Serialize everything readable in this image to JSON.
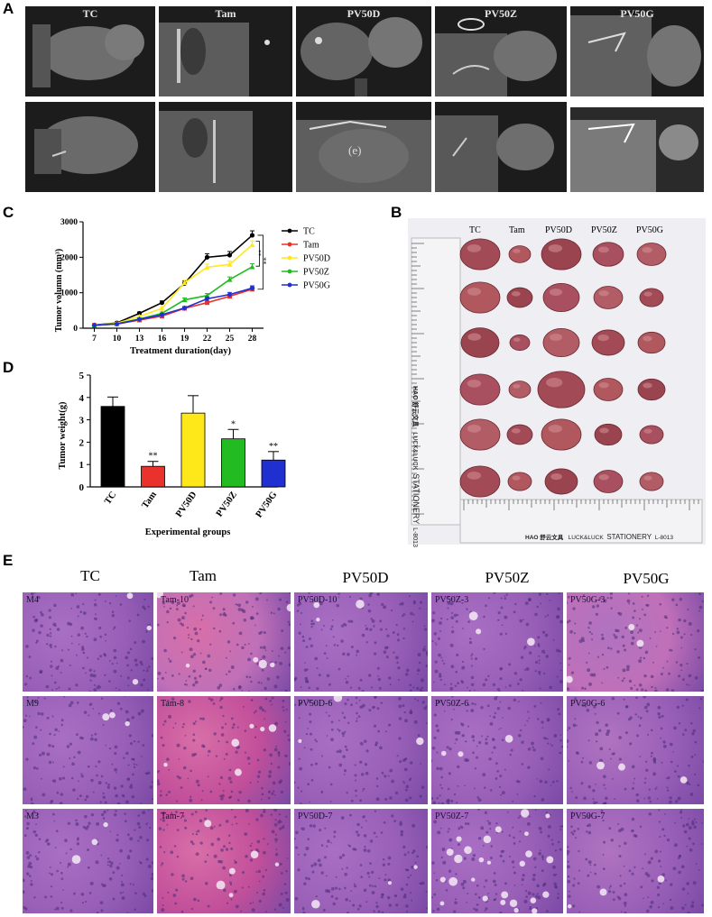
{
  "panels": {
    "A": "A",
    "B": "B",
    "C": "C",
    "D": "D",
    "E": "E"
  },
  "groups": [
    "TC",
    "Tam",
    "PV50D",
    "PV50Z",
    "PV50G"
  ],
  "panelA": {
    "titles": [
      "TC",
      "Tam",
      "PV50D",
      "PV50Z",
      "PV50G"
    ],
    "annotation": "(e)"
  },
  "panelB": {
    "col_labels": [
      "TC",
      "Tam",
      "PV50D",
      "PV50Z",
      "PV50G"
    ],
    "ruler_brand": "HAO 舒云文具",
    "ruler_text": "LUCK&LUCK",
    "ruler_stationery": "STATIONERY",
    "ruler_model": "L-8013"
  },
  "colors": {
    "TC": "#000000",
    "Tam": "#e8322b",
    "PV50D": "#ffe81a",
    "PV50Z": "#22bb22",
    "PV50G": "#1f2fd0"
  },
  "chart_data": [
    {
      "type": "line",
      "panel": "C",
      "xlabel": "Treatment duration(day)",
      "ylabel": "Tumor volumn (mm³)",
      "x": [
        7,
        10,
        13,
        16,
        19,
        22,
        25,
        28
      ],
      "xticks": [
        "7",
        "10",
        "13",
        "16",
        "19",
        "22",
        "25",
        "28"
      ],
      "yticks": [
        "0",
        "1000",
        "2000",
        "3000"
      ],
      "ylim": [
        0,
        3000
      ],
      "legend_position": "right",
      "significance": [
        "**",
        "**"
      ],
      "series": [
        {
          "name": "TC",
          "values": [
            90,
            150,
            420,
            720,
            1260,
            2000,
            2060,
            2620
          ]
        },
        {
          "name": "Tam",
          "values": [
            80,
            120,
            230,
            340,
            560,
            720,
            900,
            1100
          ]
        },
        {
          "name": "PV50D",
          "values": [
            85,
            140,
            330,
            560,
            1280,
            1720,
            1800,
            2350
          ]
        },
        {
          "name": "PV50Z",
          "values": [
            80,
            125,
            260,
            420,
            800,
            920,
            1370,
            1730
          ]
        },
        {
          "name": "PV50G",
          "values": [
            80,
            120,
            250,
            380,
            570,
            830,
            950,
            1130
          ]
        }
      ]
    },
    {
      "type": "bar",
      "panel": "D",
      "xlabel": "Experimental groups",
      "ylabel": "Tumor weight(g)",
      "categories": [
        "TC",
        "Tam",
        "PV50D",
        "PV50Z",
        "PV50G"
      ],
      "values": [
        3.6,
        0.92,
        3.3,
        2.15,
        1.2
      ],
      "errors": [
        0.42,
        0.22,
        0.78,
        0.42,
        0.38
      ],
      "significance": [
        "",
        "**",
        "",
        "*",
        "**"
      ],
      "yticks": [
        "0",
        "1",
        "2",
        "3",
        "4",
        "5"
      ],
      "ylim": [
        0,
        5
      ]
    }
  ],
  "panelE": {
    "titles": [
      "TC",
      "Tam",
      "PV50D",
      "PV50Z",
      "PV50G"
    ],
    "labels": [
      [
        "M4",
        "Tam-10",
        "PV50D-10",
        "PV50Z-3",
        "PV50G-3"
      ],
      [
        "M9",
        "Tam-8",
        "PV50D-6",
        "PV50Z-6",
        "PV50G-6"
      ],
      [
        "M3",
        "Tam-7",
        "PV50D-7",
        "PV50Z-7",
        "PV50G-7"
      ]
    ]
  }
}
